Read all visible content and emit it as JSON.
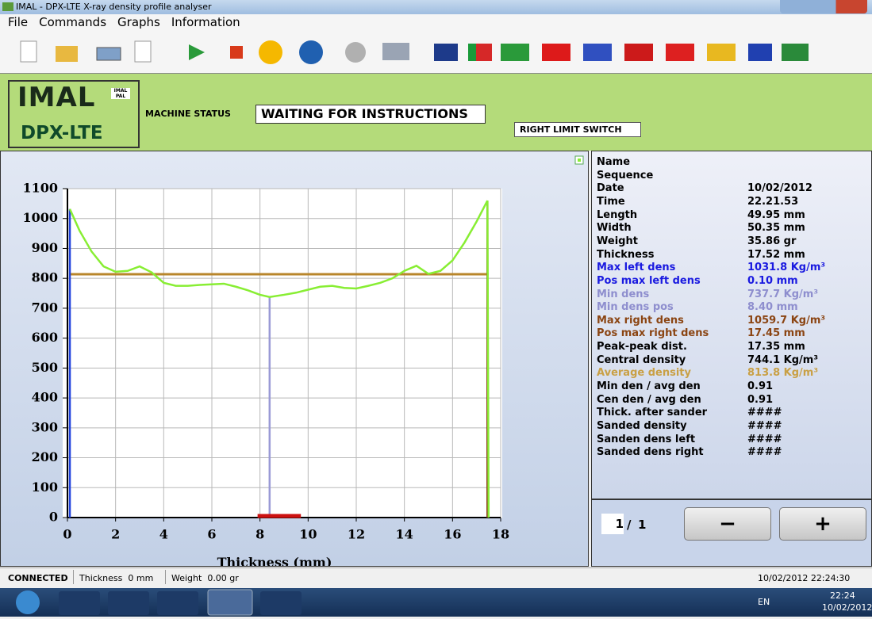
{
  "window": {
    "title": "IMAL - DPX-LTE  X-ray density profile analyser"
  },
  "menu": [
    "File",
    "Commands",
    "Graphs",
    "Information"
  ],
  "header": {
    "logo": "IMAL",
    "logo_small": [
      "IMAL",
      "PAL"
    ],
    "product": "DPX-LTE",
    "status_label": "MACHINE STATUS",
    "status": "WAITING FOR INSTRUCTIONS",
    "limit": "RIGHT LIMIT SWITCH"
  },
  "chart_data": {
    "type": "line",
    "x_label": "Thickness (mm)",
    "x": [
      0.1,
      0.5,
      1,
      1.5,
      2,
      2.5,
      3,
      3.5,
      4,
      4.5,
      5,
      5.5,
      6,
      6.5,
      7,
      7.5,
      8,
      8.4,
      9,
      9.5,
      10,
      10.5,
      11,
      11.5,
      12,
      12.5,
      13,
      13.5,
      14,
      14.5,
      15,
      15.5,
      16,
      16.5,
      17,
      17.45,
      17.5
    ],
    "series": [
      {
        "color": "#88ee33",
        "values": [
          1031.8,
          960,
          890,
          840,
          822,
          825,
          840,
          820,
          785,
          775,
          775,
          778,
          780,
          782,
          772,
          760,
          745,
          737.7,
          745,
          752,
          762,
          772,
          775,
          768,
          766,
          775,
          785,
          800,
          825,
          842,
          815,
          825,
          860,
          920,
          990,
          1059.7,
          0
        ]
      }
    ],
    "markers": [
      {
        "x": 0.1,
        "y": 1031.8,
        "color": "#2244dd"
      },
      {
        "x": 8.4,
        "y": 737.7,
        "color": "#9a9ad6"
      },
      {
        "x": 17.45,
        "y": 1059.7,
        "color": "#8b3a1a"
      }
    ],
    "average": {
      "y": 813.8,
      "color": "#b8862b"
    },
    "range": {
      "x": [
        7.9,
        9.7
      ],
      "color": "#cc1111"
    },
    "xlim": [
      0,
      18
    ],
    "xticks": [
      0,
      2,
      4,
      6,
      8,
      10,
      12,
      14,
      16,
      18
    ],
    "ylim": [
      0,
      1100
    ],
    "yticks": [
      0,
      100,
      200,
      300,
      400,
      500,
      600,
      700,
      800,
      900,
      1000,
      1100
    ],
    "grid": true
  },
  "info": [
    {
      "label": "Name",
      "color": "#000000"
    },
    {
      "label": "Sequence",
      "color": "#000000"
    },
    {
      "label": "Date",
      "value": "10/02/2012",
      "color": "#000000"
    },
    {
      "label": "Time",
      "value": "22.21.53",
      "color": "#000000"
    },
    {
      "label": "Length",
      "value": "49.95 mm",
      "color": "#000000"
    },
    {
      "label": "Width",
      "value": "50.35 mm",
      "color": "#000000"
    },
    {
      "label": "Weight",
      "value": "35.86 gr",
      "color": "#000000"
    },
    {
      "label": "Thickness",
      "value": "17.52 mm",
      "color": "#000000"
    },
    {
      "label": "Max left dens",
      "value": "1031.8 Kg/m³",
      "color": "#1a1ae0"
    },
    {
      "label": "Pos max left dens",
      "value": "0.10 mm",
      "color": "#1a1ae0"
    },
    {
      "label": "Min dens",
      "value": "737.7 Kg/m³",
      "color": "#8e8ece"
    },
    {
      "label": "Min dens pos",
      "value": "8.40 mm",
      "color": "#8e8ece"
    },
    {
      "label": "Max right dens",
      "value": "1059.7 Kg/m³",
      "color": "#8b4513"
    },
    {
      "label": "Pos max right dens",
      "value": "17.45 mm",
      "color": "#8b4513"
    },
    {
      "label": "Peak-peak dist.",
      "value": "17.35 mm",
      "color": "#000000"
    },
    {
      "label": "Central density",
      "value": "744.1 Kg/m³",
      "color": "#000000"
    },
    {
      "label": "Average density",
      "value": "813.8 Kg/m³",
      "color": "#c9a045"
    },
    {
      "label": "Min den / avg den",
      "value": "0.91",
      "color": "#000000"
    },
    {
      "label": "Cen den / avg den",
      "value": "0.91",
      "color": "#000000"
    },
    {
      "label": "Thick. after sander",
      "value": "####",
      "color": "#000000"
    },
    {
      "label": "Sanded density",
      "value": "####",
      "color": "#000000"
    },
    {
      "label": "Sanden dens left",
      "value": "####",
      "color": "#000000"
    },
    {
      "label": "Sanded dens right",
      "value": "####",
      "color": "#000000"
    }
  ],
  "pager": {
    "current": 1,
    "separator": "/",
    "total": 1,
    "minus": "−",
    "plus": "+"
  },
  "status_bar": {
    "connection": "CONNECTED",
    "thickness": "Thickness  0 mm",
    "weight": "Weight  0.00 gr",
    "datetime": "10/02/2012 22:24:30"
  },
  "taskbar": {
    "language": "EN",
    "time": "22:24",
    "date": "10/02/2012"
  }
}
